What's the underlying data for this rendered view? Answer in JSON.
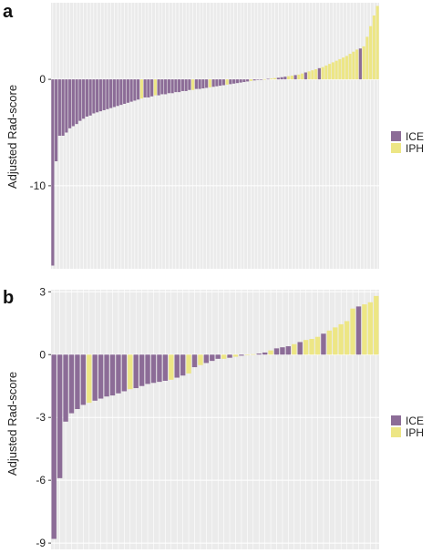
{
  "colors": {
    "ICE": "#8c6c97",
    "IPH": "#ede685",
    "panel_bg": "#ebebeb",
    "grid": "#ffffff"
  },
  "chart_data": [
    {
      "panel_label": "a",
      "type": "bar",
      "ylabel": "Adjusted Rad-score",
      "ylim": [
        -17.8,
        7.2
      ],
      "yticks": [
        0,
        -10
      ],
      "ytick_labels": [
        "0",
        "-10"
      ],
      "grid": true,
      "legend": {
        "placement": "right",
        "entries": [
          "ICE",
          "IPH"
        ]
      },
      "values": [
        -17.5,
        -7.7,
        -5.3,
        -5.3,
        -5.0,
        -4.6,
        -4.4,
        -4.2,
        -3.9,
        -3.7,
        -3.5,
        -3.4,
        -3.2,
        -3.1,
        -3.0,
        -2.9,
        -2.8,
        -2.7,
        -2.6,
        -2.5,
        -2.4,
        -2.3,
        -2.2,
        -2.1,
        -2.0,
        -1.9,
        -1.8,
        -1.7,
        -1.7,
        -1.6,
        -1.5,
        -1.5,
        -1.4,
        -1.4,
        -1.3,
        -1.3,
        -1.2,
        -1.2,
        -1.1,
        -1.1,
        -1.0,
        -1.0,
        -0.9,
        -0.9,
        -0.85,
        -0.8,
        -0.75,
        -0.7,
        -0.65,
        -0.6,
        -0.55,
        -0.5,
        -0.45,
        -0.4,
        -0.35,
        -0.3,
        -0.25,
        -0.2,
        -0.15,
        -0.1,
        -0.05,
        -0.02,
        0.02,
        0.05,
        0.08,
        0.12,
        0.15,
        0.2,
        0.25,
        0.3,
        0.35,
        0.4,
        0.45,
        0.55,
        0.65,
        0.75,
        0.85,
        0.95,
        1.05,
        1.15,
        1.3,
        1.45,
        1.6,
        1.75,
        1.9,
        2.05,
        2.2,
        2.4,
        2.6,
        2.8,
        2.9,
        3.1,
        4.0,
        5.0,
        6.0,
        6.9
      ],
      "groups": [
        "ICE",
        "ICE",
        "ICE",
        "ICE",
        "ICE",
        "ICE",
        "ICE",
        "ICE",
        "ICE",
        "ICE",
        "ICE",
        "ICE",
        "ICE",
        "ICE",
        "ICE",
        "ICE",
        "ICE",
        "ICE",
        "ICE",
        "ICE",
        "ICE",
        "ICE",
        "ICE",
        "ICE",
        "ICE",
        "ICE",
        "IPH",
        "ICE",
        "ICE",
        "ICE",
        "IPH",
        "ICE",
        "ICE",
        "ICE",
        "ICE",
        "ICE",
        "ICE",
        "ICE",
        "ICE",
        "ICE",
        "ICE",
        "IPH",
        "ICE",
        "ICE",
        "ICE",
        "ICE",
        "IPH",
        "ICE",
        "ICE",
        "ICE",
        "ICE",
        "IPH",
        "ICE",
        "ICE",
        "ICE",
        "ICE",
        "ICE",
        "ICE",
        "IPH",
        "ICE",
        "ICE",
        "ICE",
        "IPH",
        "ICE",
        "IPH",
        "IPH",
        "ICE",
        "ICE",
        "ICE",
        "IPH",
        "IPH",
        "ICE",
        "IPH",
        "IPH",
        "ICE",
        "IPH",
        "IPH",
        "IPH",
        "ICE",
        "IPH",
        "IPH",
        "IPH",
        "IPH",
        "IPH",
        "IPH",
        "IPH",
        "IPH",
        "IPH",
        "IPH",
        "IPH",
        "ICE",
        "IPH",
        "IPH",
        "IPH",
        "IPH",
        "IPH"
      ]
    },
    {
      "panel_label": "b",
      "type": "bar",
      "ylabel": "Adjusted Rad-score",
      "ylim": [
        -9.3,
        3.1
      ],
      "yticks": [
        3,
        0,
        -3,
        -6,
        -9
      ],
      "ytick_labels": [
        "3",
        "0",
        "-3",
        "-6",
        "-9"
      ],
      "grid": true,
      "legend": {
        "placement": "right",
        "entries": [
          "ICE",
          "IPH"
        ]
      },
      "values": [
        -8.8,
        -5.9,
        -3.2,
        -2.8,
        -2.6,
        -2.4,
        -2.3,
        -2.2,
        -2.1,
        -2.0,
        -1.95,
        -1.85,
        -1.75,
        -1.65,
        -1.6,
        -1.5,
        -1.4,
        -1.35,
        -1.3,
        -1.25,
        -1.2,
        -1.1,
        -1.0,
        -0.9,
        -0.6,
        -0.5,
        -0.4,
        -0.3,
        -0.2,
        -0.2,
        -0.15,
        -0.1,
        -0.05,
        -0.02,
        0.02,
        0.05,
        0.1,
        0.2,
        0.3,
        0.35,
        0.4,
        0.5,
        0.6,
        0.7,
        0.75,
        0.85,
        1.0,
        1.15,
        1.3,
        1.45,
        1.6,
        2.2,
        2.3,
        2.4,
        2.5,
        2.8
      ],
      "groups": [
        "ICE",
        "ICE",
        "ICE",
        "ICE",
        "ICE",
        "ICE",
        "IPH",
        "ICE",
        "ICE",
        "ICE",
        "ICE",
        "ICE",
        "ICE",
        "IPH",
        "ICE",
        "ICE",
        "ICE",
        "ICE",
        "ICE",
        "ICE",
        "IPH",
        "ICE",
        "ICE",
        "IPH",
        "ICE",
        "IPH",
        "ICE",
        "ICE",
        "ICE",
        "IPH",
        "ICE",
        "IPH",
        "ICE",
        "IPH",
        "IPH",
        "ICE",
        "ICE",
        "IPH",
        "ICE",
        "ICE",
        "ICE",
        "IPH",
        "ICE",
        "IPH",
        "IPH",
        "IPH",
        "ICE",
        "IPH",
        "IPH",
        "IPH",
        "IPH",
        "IPH",
        "ICE",
        "IPH",
        "IPH",
        "IPH"
      ]
    }
  ]
}
